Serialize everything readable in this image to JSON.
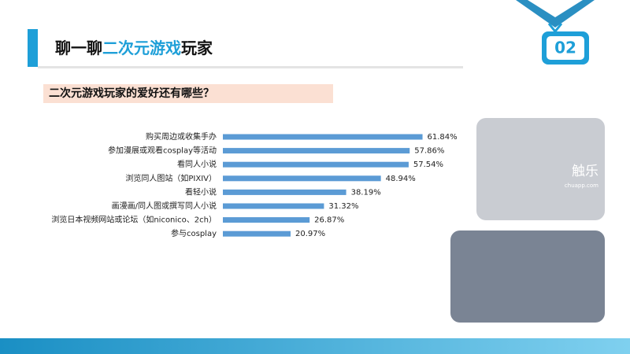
{
  "slide": {
    "title_prefix": "聊一聊",
    "title_highlight": "二次元游戏",
    "title_suffix": "玩家",
    "badge": "02",
    "question": "二次元游戏玩家的爱好还有哪些？",
    "watermark": "触乐",
    "watermark_url": "chuapp.com"
  },
  "chart_data": {
    "type": "bar",
    "orientation": "horizontal",
    "color": "#5b9bd5",
    "categories": [
      "购买周边或收集手办",
      "参加漫展或观看cosplay等活动",
      "看同人小说",
      "浏览同人图站（如PIXIV）",
      "看轻小说",
      "画漫画/同人图或撰写同人小说",
      "浏览日本视频网站或论坛（如niconico、2ch）",
      "参与cosplay"
    ],
    "values": [
      61.84,
      57.86,
      57.54,
      48.94,
      38.19,
      31.32,
      26.87,
      20.97
    ],
    "value_labels": [
      "61.84%",
      "57.86%",
      "57.54%",
      "48.94%",
      "38.19%",
      "31.32%",
      "26.87%",
      "20.97%"
    ]
  }
}
